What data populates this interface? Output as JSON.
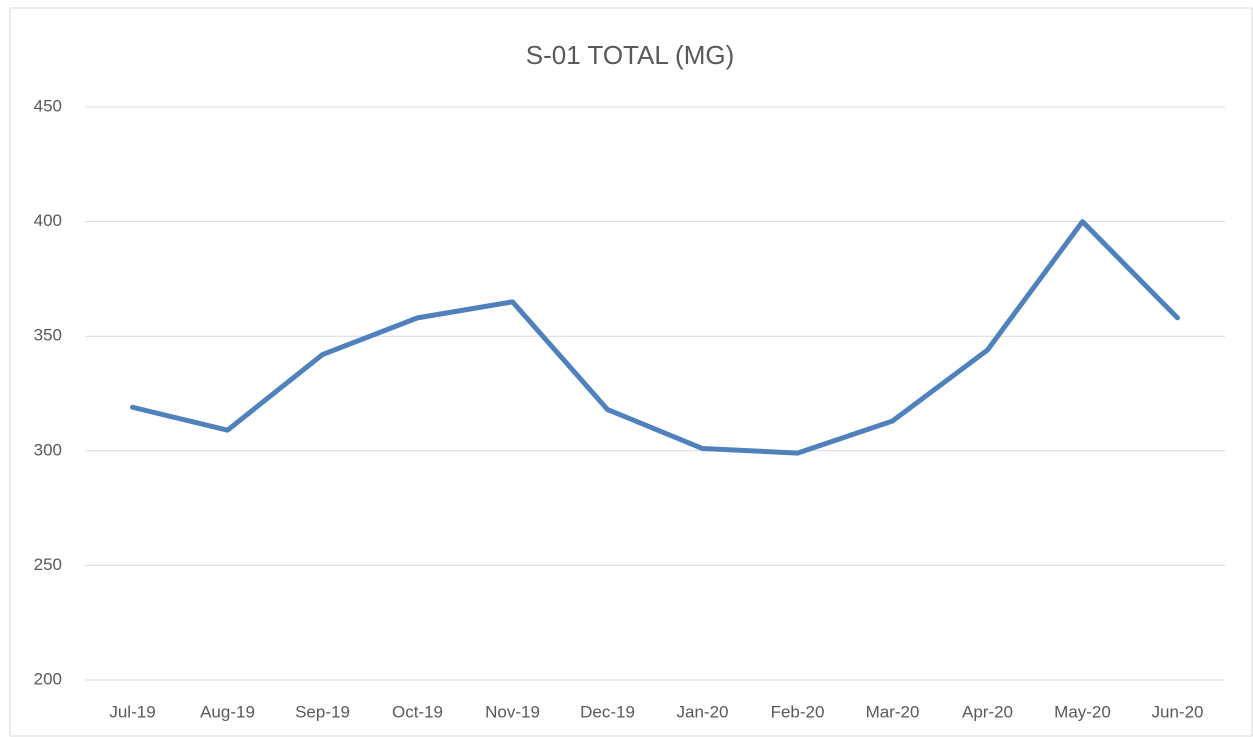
{
  "chart_data": {
    "type": "line",
    "title": "S-01 TOTAL (MG)",
    "categories": [
      "Jul-19",
      "Aug-19",
      "Sep-19",
      "Oct-19",
      "Nov-19",
      "Dec-19",
      "Jan-20",
      "Feb-20",
      "Mar-20",
      "Apr-20",
      "May-20",
      "Jun-20"
    ],
    "series": [
      {
        "name": "S-01 TOTAL (MG)",
        "color": "#4f81bd",
        "values": [
          319,
          309,
          342,
          358,
          365,
          318,
          301,
          299,
          313,
          344,
          400,
          358
        ]
      }
    ],
    "ylim": [
      200,
      450
    ],
    "yticks": [
      200,
      250,
      300,
      350,
      400,
      450
    ],
    "grid": true
  }
}
